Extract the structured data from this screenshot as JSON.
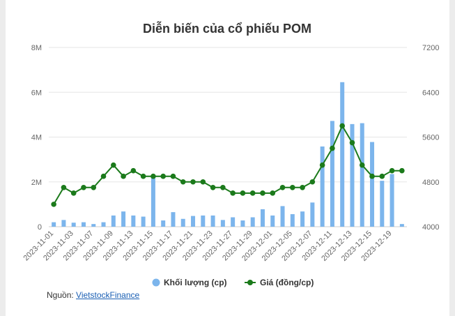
{
  "chart_data": {
    "type": "bar+line",
    "title": "Diễn biến của cổ phiếu POM",
    "x": [
      "2023-11-01",
      "2023-11-02",
      "2023-11-03",
      "2023-11-06",
      "2023-11-07",
      "2023-11-08",
      "2023-11-09",
      "2023-11-10",
      "2023-11-13",
      "2023-11-14",
      "2023-11-15",
      "2023-11-16",
      "2023-11-17",
      "2023-11-20",
      "2023-11-21",
      "2023-11-22",
      "2023-11-23",
      "2023-11-24",
      "2023-11-27",
      "2023-11-28",
      "2023-11-29",
      "2023-11-30",
      "2023-12-01",
      "2023-12-04",
      "2023-12-05",
      "2023-12-06",
      "2023-12-07",
      "2023-12-08",
      "2023-12-11",
      "2023-12-12",
      "2023-12-13",
      "2023-12-14",
      "2023-12-15",
      "2023-12-18",
      "2023-12-19",
      "2023-12-20"
    ],
    "x_tick_labels": [
      "2023-11-01",
      "2023-11-03",
      "2023-11-07",
      "2023-11-09",
      "2023-11-13",
      "2023-11-15",
      "2023-11-17",
      "2023-11-21",
      "2023-11-23",
      "2023-11-27",
      "2023-11-29",
      "2023-12-01",
      "2023-12-05",
      "2023-12-07",
      "2023-12-11",
      "2023-12-13",
      "2023-12-15",
      "2023-12-19"
    ],
    "series": [
      {
        "name": "Khối lượng (cp)",
        "type": "bar",
        "axis": "left",
        "color": "#7cb5ec",
        "values": [
          200000,
          300000,
          180000,
          200000,
          120000,
          200000,
          500000,
          680000,
          500000,
          450000,
          2200000,
          280000,
          650000,
          350000,
          480000,
          500000,
          500000,
          300000,
          420000,
          280000,
          420000,
          780000,
          500000,
          920000,
          560000,
          680000,
          1080000,
          3580000,
          4720000,
          6450000,
          4580000,
          4620000,
          3780000,
          2050000,
          2350000,
          120000
        ]
      },
      {
        "name": "Giá (đồng/cp)",
        "type": "line",
        "axis": "right",
        "color": "#1b7a1b",
        "values": [
          4400,
          4700,
          4600,
          4700,
          4700,
          4900,
          5100,
          4900,
          5000,
          4900,
          4900,
          4900,
          4900,
          4800,
          4800,
          4800,
          4700,
          4700,
          4600,
          4600,
          4600,
          4600,
          4600,
          4700,
          4700,
          4700,
          4800,
          5100,
          5400,
          5800,
          5500,
          5100,
          4900,
          4900,
          5000,
          5000
        ]
      }
    ],
    "y_left": {
      "lim": [
        0,
        8000000
      ],
      "ticks": [
        0,
        2000000,
        4000000,
        6000000,
        8000000
      ],
      "tick_labels": [
        "0",
        "2M",
        "4M",
        "6M",
        "8M"
      ]
    },
    "y_right": {
      "lim": [
        4000,
        7200
      ],
      "ticks": [
        4000,
        4800,
        5600,
        6400,
        7200
      ],
      "tick_labels": [
        "4000",
        "4800",
        "5600",
        "6400",
        "7200"
      ]
    },
    "grid": true,
    "legend_position": "bottom-center"
  },
  "legend": [
    {
      "label": "Khối lượng (cp)",
      "color": "#7cb5ec"
    },
    {
      "label": "Giá (đồng/cp)",
      "color": "#1b7a1b"
    }
  ],
  "source": {
    "prefix": "Nguồn: ",
    "link_text": "VietstockFinance"
  }
}
